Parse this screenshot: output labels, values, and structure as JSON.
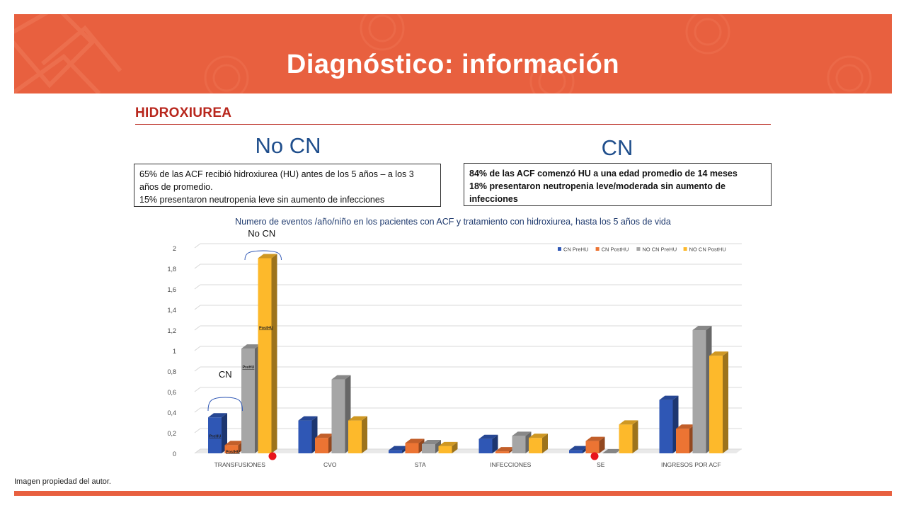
{
  "header": {
    "title": "Diagnóstico: información"
  },
  "section": {
    "title": "HIDROXIUREA"
  },
  "groups": {
    "left": {
      "heading": "No CN",
      "lines": [
        "65% de las ACF  recibió hidroxiurea (HU) antes de los 5 años – a los 3 años de promedio.",
        "15%  presentaron neutropenia leve sin aumento de infecciones"
      ]
    },
    "right": {
      "heading": "CN",
      "lines": [
        "84% de las ACF comenzó HU a una edad promedio de 14 meses",
        "18% presentaron neutropenia leve/moderada sin aumento de infecciones"
      ]
    }
  },
  "chart_data": {
    "type": "bar",
    "title": "Numero de eventos /año/niño  en los pacientes con ACF y tratamiento con hidroxiurea, hasta los 5 años de vida",
    "categories": [
      "TRANSFUSIONES",
      "CVO",
      "STA",
      "INFECCIONES",
      "SE",
      "INGRESOS POR ACF"
    ],
    "series": [
      {
        "name": "CN PreHU",
        "color": "#2f57b5",
        "values": [
          0.35,
          0.32,
          0.03,
          0.14,
          0.03,
          0.52
        ]
      },
      {
        "name": "CN PostHU",
        "color": "#ec7433",
        "values": [
          0.08,
          0.15,
          0.1,
          0.02,
          0.12,
          0.24
        ]
      },
      {
        "name": "NO CN PreHU",
        "color": "#a6a6a6",
        "values": [
          1.02,
          0.72,
          0.09,
          0.17,
          0.0,
          1.2
        ]
      },
      {
        "name": "NO CN PostHU",
        "color": "#fdb92b",
        "values": [
          1.9,
          0.32,
          0.07,
          0.15,
          0.28,
          0.95
        ]
      }
    ],
    "yticks": [
      "0",
      "0,2",
      "0,4",
      "0,6",
      "0,8",
      "1",
      "1,2",
      "1,4",
      "1,6",
      "1,8",
      "2"
    ],
    "ylim": [
      0,
      2
    ],
    "grid": true,
    "legend_position": "top-right",
    "annotations": {
      "bracket_nocn": "No CN",
      "bracket_cn": "CN",
      "bar_labels": [
        {
          "text": "PreHU",
          "category": 0,
          "series": 0
        },
        {
          "text": "PostHU",
          "category": 0,
          "series": 1
        },
        {
          "text": "PreHU",
          "category": 0,
          "series": 2
        },
        {
          "text": "PostHU",
          "category": 0,
          "series": 3
        }
      ],
      "marker_color": "#e8141b"
    }
  },
  "footer": {
    "note": "Imagen propiedad del autor."
  },
  "theme": {
    "accent": "#e8603f",
    "section_red": "#b8261c",
    "heading_blue": "#1f4e8c"
  }
}
